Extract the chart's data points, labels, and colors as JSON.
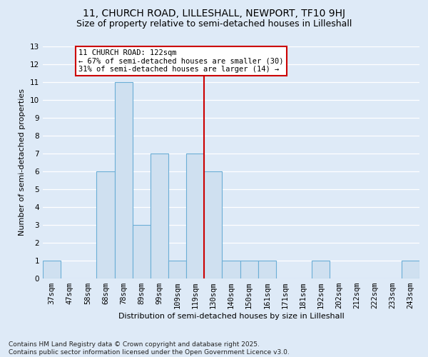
{
  "title1": "11, CHURCH ROAD, LILLESHALL, NEWPORT, TF10 9HJ",
  "title2": "Size of property relative to semi-detached houses in Lilleshall",
  "xlabel": "Distribution of semi-detached houses by size in Lilleshall",
  "ylabel": "Number of semi-detached properties",
  "categories": [
    "37sqm",
    "47sqm",
    "58sqm",
    "68sqm",
    "78sqm",
    "89sqm",
    "99sqm",
    "109sqm",
    "119sqm",
    "130sqm",
    "140sqm",
    "150sqm",
    "161sqm",
    "171sqm",
    "181sqm",
    "192sqm",
    "202sqm",
    "212sqm",
    "222sqm",
    "233sqm",
    "243sqm"
  ],
  "values": [
    1,
    0,
    0,
    6,
    11,
    3,
    7,
    1,
    7,
    6,
    1,
    1,
    1,
    0,
    0,
    1,
    0,
    0,
    0,
    0,
    1
  ],
  "bar_color": "#cfe0f0",
  "bar_edge_color": "#6baed6",
  "property_line_x": 8.5,
  "property_label": "11 CHURCH ROAD: 122sqm",
  "annotation_line1": "← 67% of semi-detached houses are smaller (30)",
  "annotation_line2": "31% of semi-detached houses are larger (14) →",
  "annotation_box_color": "#ffffff",
  "annotation_box_edge_color": "#cc0000",
  "vline_color": "#cc0000",
  "ylim": [
    0,
    13
  ],
  "yticks": [
    0,
    1,
    2,
    3,
    4,
    5,
    6,
    7,
    8,
    9,
    10,
    11,
    12,
    13
  ],
  "footnote": "Contains HM Land Registry data © Crown copyright and database right 2025.\nContains public sector information licensed under the Open Government Licence v3.0.",
  "background_color": "#deeaf7",
  "grid_color": "#ffffff",
  "title_fontsize": 10,
  "subtitle_fontsize": 9,
  "tick_fontsize": 7.5,
  "annotation_fontsize": 7.5,
  "ylabel_fontsize": 8,
  "xlabel_fontsize": 8,
  "footnote_fontsize": 6.5
}
